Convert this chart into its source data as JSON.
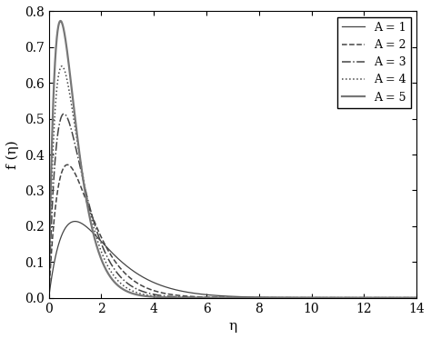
{
  "title": "",
  "xlabel": "η",
  "ylabel": "f (η)",
  "xlim": [
    0,
    14
  ],
  "ylim": [
    0,
    0.8
  ],
  "xticks": [
    0,
    2,
    4,
    6,
    8,
    10,
    12,
    14
  ],
  "yticks": [
    0.0,
    0.1,
    0.2,
    0.3,
    0.4,
    0.5,
    0.6,
    0.7,
    0.8
  ],
  "A_values": [
    1,
    2,
    3,
    4,
    5
  ],
  "line_styles": [
    "-",
    "--",
    "-.",
    ":",
    "-"
  ],
  "line_colors": [
    "#444444",
    "#444444",
    "#444444",
    "#444444",
    "#777777"
  ],
  "line_widths": [
    0.9,
    1.1,
    1.1,
    1.1,
    1.6
  ],
  "legend_labels": [
    "A = 1",
    "A = 2",
    "A = 3",
    "A = 4",
    "A = 5"
  ],
  "background_color": "#ffffff",
  "eta_max": 14.0,
  "n_points": 2000,
  "scale_factor": 1.0
}
